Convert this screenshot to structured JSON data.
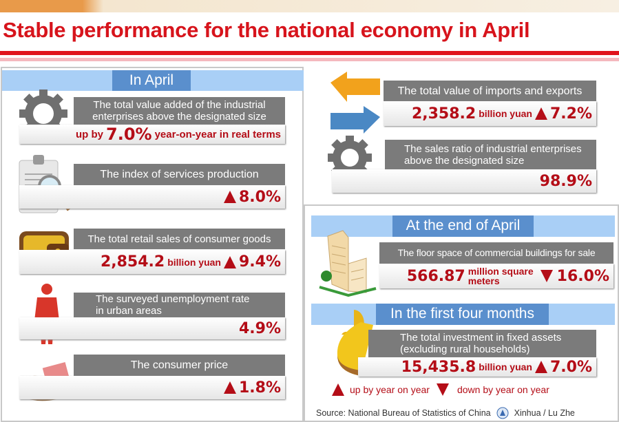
{
  "title": "Stable performance for the national economy in April",
  "colors": {
    "red": "#b40d17",
    "title_red": "#d7141c",
    "band": "#a9cff6",
    "tab": "#5a8fcd",
    "label_gray": "#7b7b7b"
  },
  "in_april": {
    "heading": "In April",
    "industrial": {
      "label_1": "The total value added of the industrial",
      "label_2": "enterprises above the designated size",
      "prefix": "up by",
      "value": "7.0%",
      "suffix": "year-on-year in real terms",
      "icon": "gear-icon"
    },
    "services": {
      "label": "The index of services production",
      "value": "8.0%",
      "trend": "up",
      "icon": "clipboard-magnifier-icon"
    },
    "retail": {
      "label": "The total retail sales of consumer goods",
      "value": "2,854.2",
      "unit": "billion yuan",
      "change": "9.4%",
      "trend": "up",
      "icon": "wallet-icon"
    },
    "unemployment": {
      "label_1": "The surveyed unemployment rate",
      "label_2": "in urban areas",
      "value": "4.9%",
      "icon": "person-icon"
    },
    "cpi": {
      "label": "The consumer price",
      "value": "1.8%",
      "trend": "up",
      "icon": "hand-wallet-icon"
    },
    "trade": {
      "label": "The total value of imports and exports",
      "value": "2,358.2",
      "unit": "billion yuan",
      "change": "7.2%",
      "trend": "up",
      "icon": "exchange-arrows-icon"
    },
    "sales_ratio": {
      "label_1": "The sales ratio of industrial enterprises",
      "label_2": "above the designated size",
      "value": "98.9%",
      "icon": "gears-icon"
    }
  },
  "end_of_april": {
    "heading": "At the end of April",
    "floor_space": {
      "label": "The floor space of commercial buildings for sale",
      "value": "566.87",
      "unit_1": "million square",
      "unit_2": "meters",
      "change": "16.0%",
      "trend": "down",
      "icon": "building-icon"
    }
  },
  "first_four_months": {
    "heading": "In the first four months",
    "investment": {
      "label_1": "The total investment in fixed assets",
      "label_2": "(excluding rural households)",
      "value": "15,435.8",
      "unit": "billion yuan",
      "change": "7.0%",
      "trend": "up",
      "icon": "pie-chart-icon"
    }
  },
  "legend": {
    "up": "up by year on year",
    "down": "down by year on year"
  },
  "source": "Source: National Bureau of Statistics of China",
  "credit": "Xinhua / Lu Zhe"
}
